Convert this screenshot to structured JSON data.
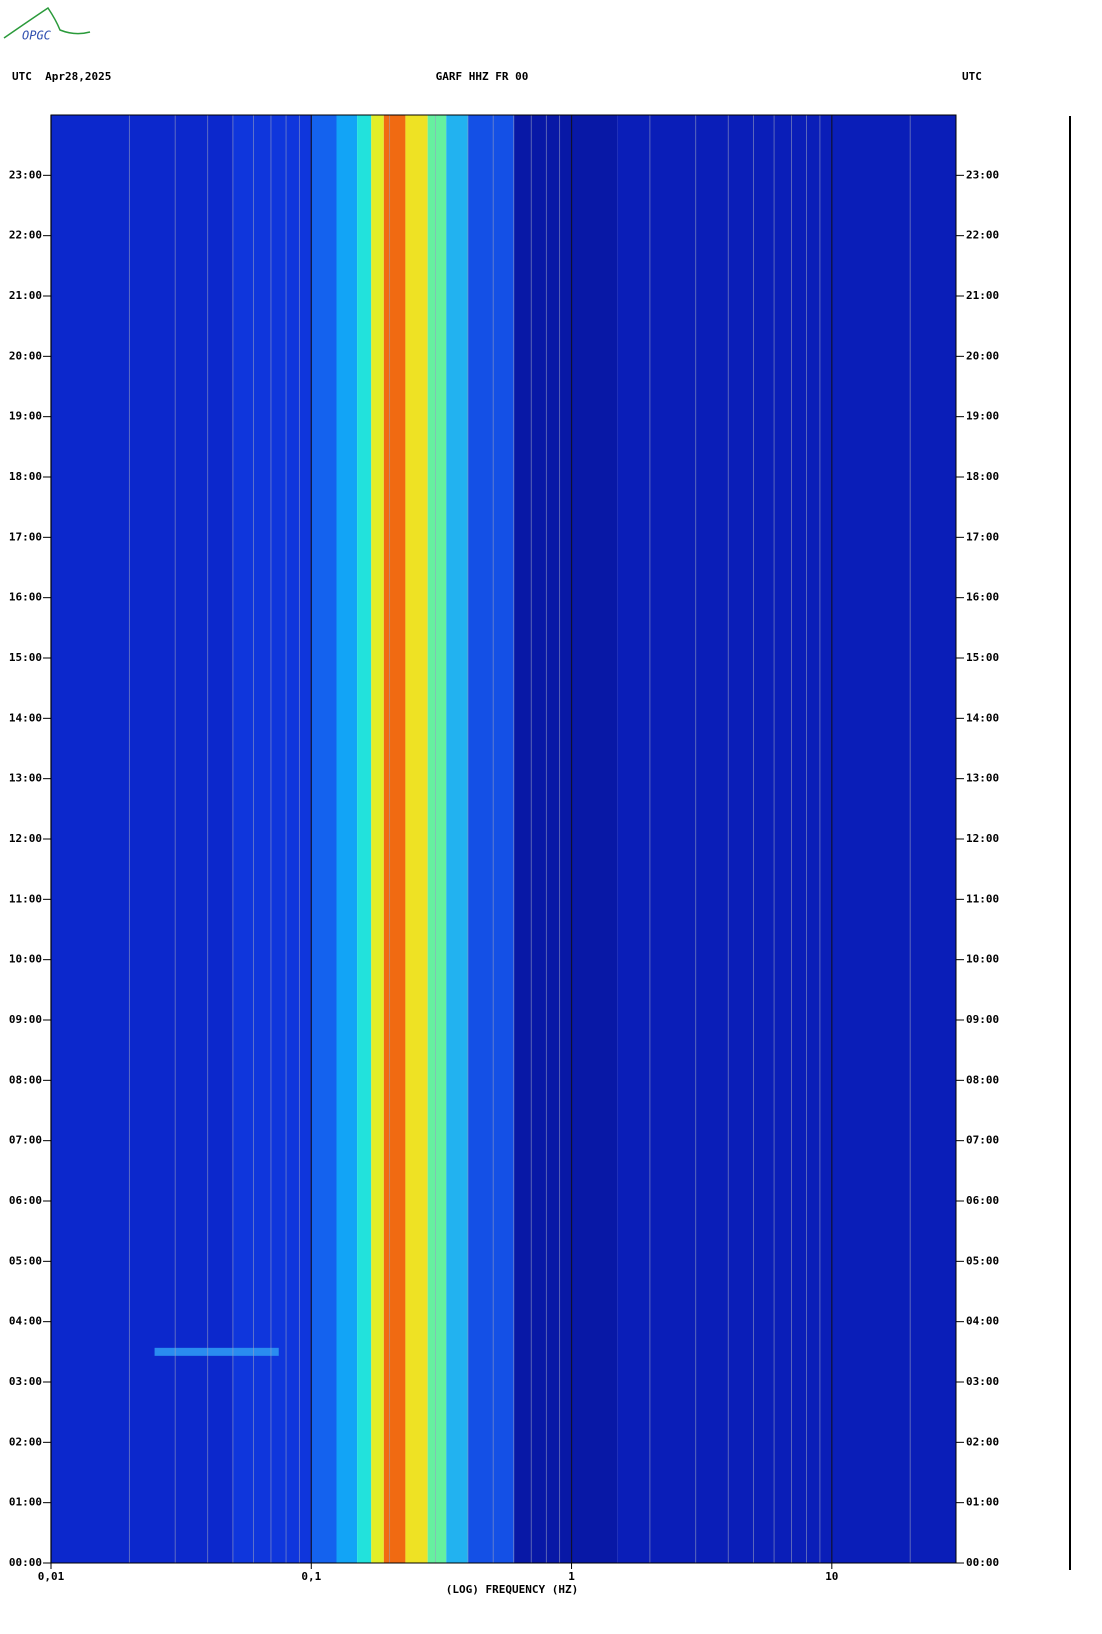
{
  "chart_data": {
    "type": "spectrogram",
    "logo": "OPGC",
    "date_label": "UTC  Apr28,2025",
    "title": "GARF HHZ FR 00",
    "timezone_label": "UTC",
    "xlabel": "(LOG) FREQUENCY (HZ)",
    "xscale": "log",
    "xlim": [
      0.01,
      30
    ],
    "xticks": [
      {
        "value": 0.01,
        "label": "0,01"
      },
      {
        "value": 0.1,
        "label": "0,1"
      },
      {
        "value": 1,
        "label": "1"
      },
      {
        "value": 10,
        "label": "10"
      }
    ],
    "xminor": [
      0.02,
      0.03,
      0.04,
      0.05,
      0.06,
      0.07,
      0.08,
      0.09,
      0.2,
      0.3,
      0.4,
      0.5,
      0.6,
      0.7,
      0.8,
      0.9,
      2,
      3,
      4,
      5,
      6,
      7,
      8,
      9,
      20
    ],
    "ylim": [
      0,
      24
    ],
    "yticks": [
      {
        "value": 0,
        "label": "00:00"
      },
      {
        "value": 1,
        "label": "01:00"
      },
      {
        "value": 2,
        "label": "02:00"
      },
      {
        "value": 3,
        "label": "03:00"
      },
      {
        "value": 4,
        "label": "04:00"
      },
      {
        "value": 5,
        "label": "05:00"
      },
      {
        "value": 6,
        "label": "06:00"
      },
      {
        "value": 7,
        "label": "07:00"
      },
      {
        "value": 8,
        "label": "08:00"
      },
      {
        "value": 9,
        "label": "09:00"
      },
      {
        "value": 10,
        "label": "10:00"
      },
      {
        "value": 11,
        "label": "11:00"
      },
      {
        "value": 12,
        "label": "12:00"
      },
      {
        "value": 13,
        "label": "13:00"
      },
      {
        "value": 14,
        "label": "14:00"
      },
      {
        "value": 15,
        "label": "15:00"
      },
      {
        "value": 16,
        "label": "16:00"
      },
      {
        "value": 17,
        "label": "17:00"
      },
      {
        "value": 18,
        "label": "18:00"
      },
      {
        "value": 19,
        "label": "19:00"
      },
      {
        "value": 20,
        "label": "20:00"
      },
      {
        "value": 21,
        "label": "21:00"
      },
      {
        "value": 22,
        "label": "22:00"
      },
      {
        "value": 23,
        "label": "23:00"
      }
    ],
    "bands": {
      "edges": [
        0.01,
        0.05,
        0.1,
        0.125,
        0.15,
        0.17,
        0.19,
        0.23,
        0.28,
        0.33,
        0.4,
        0.6,
        1.5,
        30
      ],
      "colors": [
        "#0c28cc",
        "#0f36dc",
        "#1462ee",
        "#12a4f6",
        "#22e2dc",
        "#e2ee28",
        "#f06a12",
        "#eee224",
        "#66f0a0",
        "#22b2f0",
        "#1450e6",
        "#0818a6",
        "#0a1eb8"
      ]
    },
    "events": [
      {
        "time": 3.5,
        "xlim": [
          0.025,
          0.075
        ],
        "color": "#2a8cf0"
      }
    ]
  }
}
